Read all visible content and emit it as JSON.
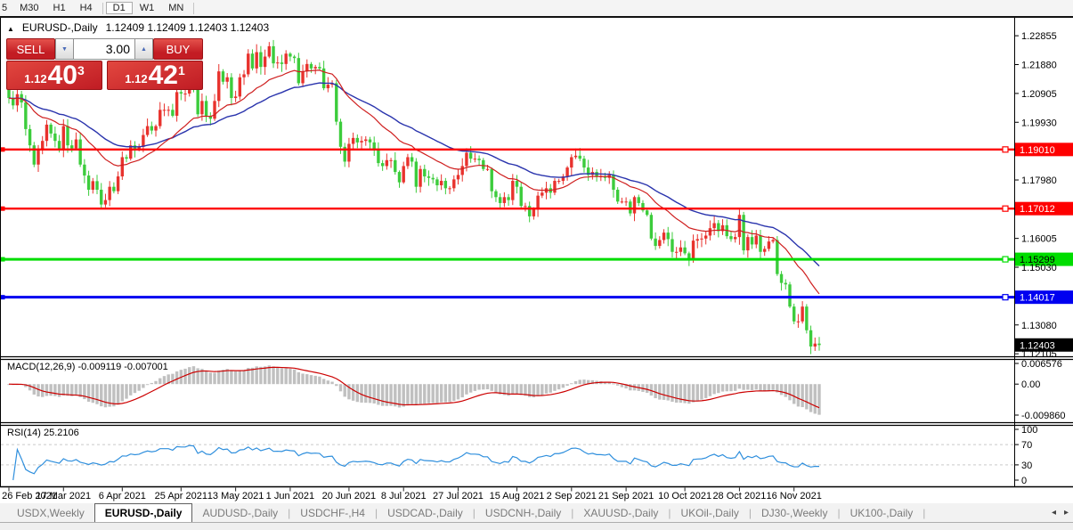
{
  "toolbar": {
    "timeframes": [
      "5",
      "M30",
      "H1",
      "H4",
      "D1",
      "W1",
      "MN"
    ],
    "active": "D1",
    "separators_after": [
      3,
      6
    ]
  },
  "chart": {
    "collapse_icon": "▲",
    "title": "EURUSD-,Daily",
    "quote": "1.12409 1.12409 1.12403 1.12403",
    "trade_panel": {
      "sell_label": "SELL",
      "buy_label": "BUY",
      "volume": "3.00",
      "spinner_down_icon": "▼",
      "spinner_up_icon": "▲",
      "sell_price": {
        "prefix": "1.12",
        "big": "40",
        "sup": "3"
      },
      "buy_price": {
        "prefix": "1.12",
        "big": "42",
        "sup": "1"
      }
    },
    "price_axis_ticks": [
      {
        "label": "1.22855",
        "value": 1.22855
      },
      {
        "label": "1.21880",
        "value": 1.2188
      },
      {
        "label": "1.20905",
        "value": 1.20905
      },
      {
        "label": "1.19930",
        "value": 1.1993
      },
      {
        "label": "1.17980",
        "value": 1.1798
      },
      {
        "label": "1.16005",
        "value": 1.16005
      },
      {
        "label": "1.15030",
        "value": 1.1503
      },
      {
        "label": "1.13080",
        "value": 1.1308
      },
      {
        "label": "1.12105",
        "value": 1.12105
      }
    ],
    "level_lines": [
      {
        "label": "1.19010",
        "value": 1.1901,
        "color": "#fe0000",
        "text_color": "#ffffff",
        "width": 2.4
      },
      {
        "label": "1.17012",
        "value": 1.17012,
        "color": "#fe0000",
        "text_color": "#ffffff",
        "width": 2.4
      },
      {
        "label": "1.15299",
        "value": 1.15299,
        "color": "#00dd00",
        "text_color": "#000000",
        "width": 3
      },
      {
        "label": "1.14017",
        "value": 1.14017,
        "color": "#0000f0",
        "text_color": "#ffffff",
        "width": 3
      }
    ],
    "current_price": {
      "label": "1.12403",
      "value": 1.12403,
      "bg": "#000000",
      "text_color": "#ffffff"
    },
    "macd": {
      "label": "MACD(12,26,9) -0.009119 -0.007001",
      "axis": [
        {
          "label": "0.006576",
          "value": 0.006576
        },
        {
          "label": "0.00",
          "value": 0
        },
        {
          "label": "-0.009860",
          "value": -0.00986
        }
      ]
    },
    "rsi": {
      "label": "RSI(14) 25.2106",
      "axis": [
        {
          "label": "100",
          "value": 100
        },
        {
          "label": "70",
          "value": 70
        },
        {
          "label": "30",
          "value": 30
        },
        {
          "label": "0",
          "value": 0
        }
      ],
      "levels": [
        70,
        30
      ]
    }
  },
  "chart_data": {
    "type": "candlestick",
    "symbol": "EURUSD-",
    "timeframe": "Daily",
    "title": "EURUSD-,Daily",
    "ylim": [
      1.1205,
      1.2331
    ],
    "grid": false,
    "open_first": 1.2175,
    "closes": [
      1.2075,
      1.205,
      1.2088,
      1.206,
      1.197,
      1.1915,
      1.185,
      1.19,
      1.193,
      1.1985,
      1.1955,
      1.193,
      1.19,
      1.198,
      1.1915,
      1.1905,
      1.1935,
      1.185,
      1.1813,
      1.1765,
      1.1794,
      1.1765,
      1.1715,
      1.173,
      1.1775,
      1.176,
      1.181,
      1.1875,
      1.187,
      1.1915,
      1.19,
      1.191,
      1.195,
      1.198,
      1.1965,
      1.198,
      1.2035,
      1.2035,
      1.2035,
      1.2015,
      1.2095,
      1.209,
      1.209,
      1.2125,
      1.212,
      1.202,
      1.2065,
      1.2015,
      1.2005,
      1.2065,
      1.2165,
      1.213,
      1.2145,
      1.2075,
      1.208,
      1.2145,
      1.2155,
      1.2225,
      1.2175,
      1.223,
      1.218,
      1.2215,
      1.225,
      1.2192,
      1.2195,
      1.219,
      1.2225,
      1.2215,
      1.221,
      1.2125,
      1.2165,
      1.219,
      1.2175,
      1.218,
      1.2175,
      1.2108,
      1.212,
      1.2125,
      1.1995,
      1.191,
      1.186,
      1.192,
      1.194,
      1.1925,
      1.193,
      1.1935,
      1.1925,
      1.19,
      1.1855,
      1.1845,
      1.1865,
      1.1865,
      1.1825,
      1.179,
      1.1845,
      1.1875,
      1.186,
      1.1775,
      1.1835,
      1.181,
      1.1805,
      1.18,
      1.178,
      1.1795,
      1.177,
      1.177,
      1.18,
      1.1815,
      1.1845,
      1.189,
      1.187,
      1.187,
      1.1865,
      1.1835,
      1.1835,
      1.176,
      1.174,
      1.172,
      1.174,
      1.173,
      1.1795,
      1.1775,
      1.171,
      1.171,
      1.1675,
      1.17,
      1.1745,
      1.1755,
      1.177,
      1.1755,
      1.1795,
      1.1795,
      1.181,
      1.184,
      1.1875,
      1.188,
      1.187,
      1.184,
      1.1815,
      1.1825,
      1.181,
      1.181,
      1.1805,
      1.1815,
      1.1765,
      1.1725,
      1.1725,
      1.1725,
      1.1685,
      1.174,
      1.172,
      1.1695,
      1.168,
      1.16,
      1.1575,
      1.1595,
      1.162,
      1.1598,
      1.1555,
      1.1555,
      1.157,
      1.155,
      1.153,
      1.1593,
      1.1598,
      1.16,
      1.161,
      1.1635,
      1.1652,
      1.1625,
      1.1645,
      1.1608,
      1.1598,
      1.1605,
      1.168,
      1.156,
      1.1605,
      1.158,
      1.161,
      1.1555,
      1.1565,
      1.159,
      1.1595,
      1.148,
      1.145,
      1.1445,
      1.137,
      1.132,
      1.132,
      1.137,
      1.129,
      1.1235,
      1.1245,
      1.124
    ],
    "x_labels": [
      {
        "label": "26 Feb 2021",
        "idx": 0
      },
      {
        "label": "17 Mar 2021",
        "idx": 13
      },
      {
        "label": "6 Apr 2021",
        "idx": 27
      },
      {
        "label": "25 Apr 2021",
        "idx": 41
      },
      {
        "label": "13 May 2021",
        "idx": 54
      },
      {
        "label": "1 Jun 2021",
        "idx": 67
      },
      {
        "label": "20 Jun 2021",
        "idx": 81
      },
      {
        "label": "8 Jul 2021",
        "idx": 94
      },
      {
        "label": "27 Jul 2021",
        "idx": 107
      },
      {
        "label": "15 Aug 2021",
        "idx": 121
      },
      {
        "label": "2 Sep 2021",
        "idx": 134
      },
      {
        "label": "21 Sep 2021",
        "idx": 147
      },
      {
        "label": "10 Oct 2021",
        "idx": 161
      },
      {
        "label": "28 Oct 2021",
        "idx": 174
      },
      {
        "label": "16 Nov 2021",
        "idx": 187
      }
    ],
    "series": [
      {
        "name": "ma-fast",
        "type": "ema",
        "period": 20,
        "color": "#cf1f1f"
      },
      {
        "name": "ma-slow",
        "type": "ema",
        "period": 40,
        "color": "#2a34ad"
      },
      {
        "name": "macd",
        "params": [
          12,
          26,
          9
        ],
        "histogram_color": "#c0c0c0",
        "signal_color": "#cc0000",
        "last_values": [
          -0.009119,
          -0.007001
        ]
      },
      {
        "name": "rsi",
        "params": [
          14
        ],
        "color": "#2f8fdd",
        "last_value": 25.2106
      }
    ],
    "colors": {
      "up": "#e8322d",
      "down": "#3ccc3c",
      "background": "#ffffff"
    }
  },
  "tabs": {
    "items": [
      "USDX,Weekly",
      "EURUSD-,Daily",
      "AUDUSD-,Daily",
      "USDCHF-,H4",
      "USDCAD-,Daily",
      "USDCNH-,Daily",
      "XAUUSD-,Daily",
      "UKOil-,Daily",
      "DJ30-,Weekly",
      "UK100-,Daily"
    ],
    "active_index": 1,
    "scroll_left": "◂",
    "scroll_right": "▸"
  }
}
